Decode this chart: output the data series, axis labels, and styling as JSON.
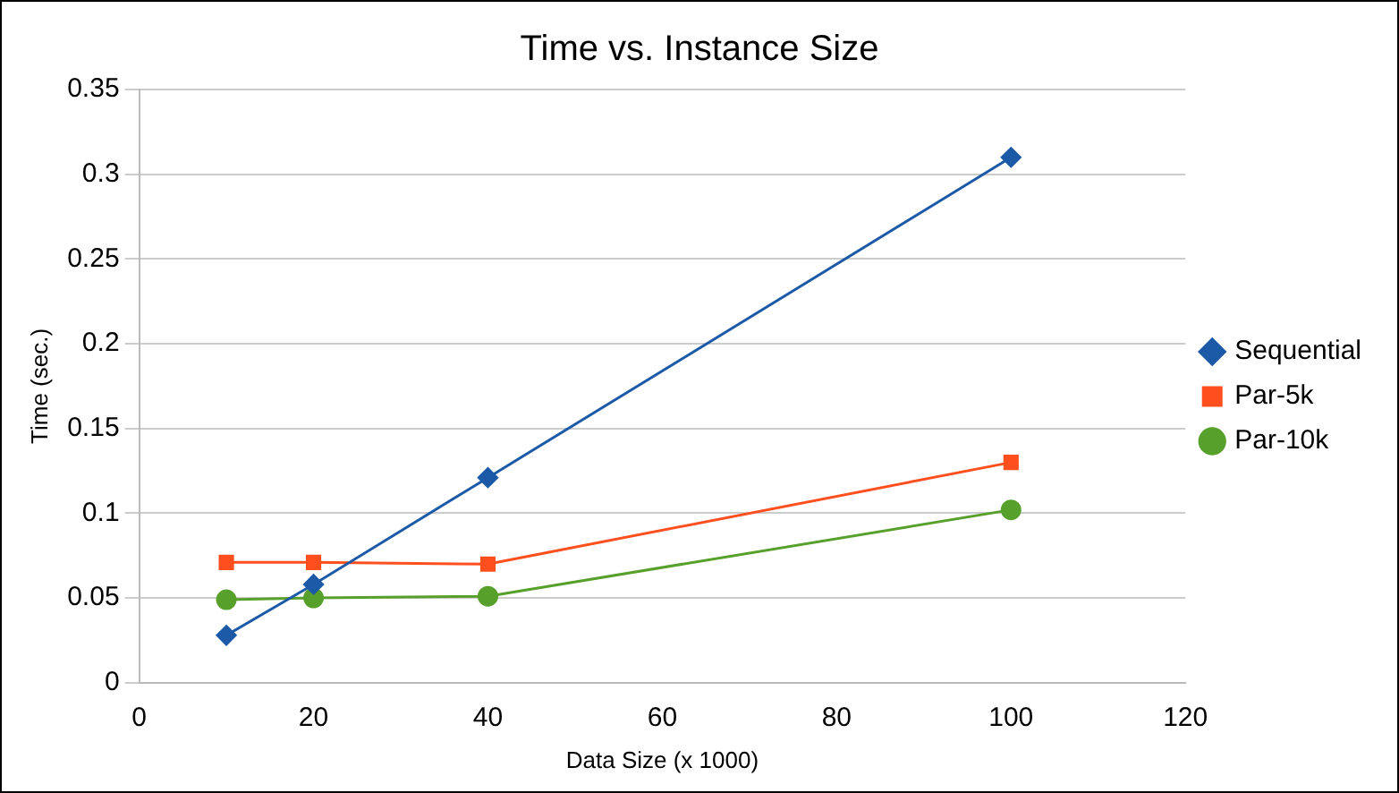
{
  "chart_data": {
    "type": "line",
    "title": "Time vs. Instance Size",
    "xlabel": "Data Size (x 1000)",
    "ylabel": "Time (sec.)",
    "x": [
      10,
      20,
      40,
      100
    ],
    "series": [
      {
        "name": "Sequential",
        "color": "#1c5aa8",
        "marker": "diamond",
        "values": [
          0.028,
          0.058,
          0.121,
          0.31
        ]
      },
      {
        "name": "Par-5k",
        "color": "#ff4f1f",
        "marker": "square",
        "values": [
          0.071,
          0.071,
          0.07,
          0.13
        ]
      },
      {
        "name": "Par-10k",
        "color": "#58a02c",
        "marker": "circle",
        "values": [
          0.049,
          0.05,
          0.051,
          0.102
        ]
      }
    ],
    "xlim": [
      0,
      120
    ],
    "xticks": [
      0,
      20,
      40,
      60,
      80,
      100,
      120
    ],
    "ylim": [
      0,
      0.35
    ],
    "yticks": [
      0,
      0.05,
      0.1,
      0.15,
      0.2,
      0.25,
      0.3,
      0.35
    ],
    "grid": "y",
    "legend": "right"
  }
}
